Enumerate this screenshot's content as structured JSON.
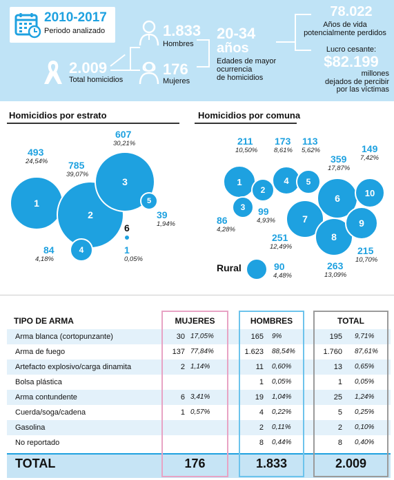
{
  "header": {
    "period_years": "2010-2017",
    "period_label": "Periodo analizado",
    "total_value": "2.009",
    "total_label": "Total homicidios",
    "men_value": "1.833",
    "men_label": "Hombres",
    "women_value": "176",
    "women_label": "Mujeres",
    "age_range": "20-34",
    "age_unit": "años",
    "age_desc_1": "Edades de mayor",
    "age_desc_2": "ocurrencia",
    "age_desc_3": "de homicidios",
    "years_lost_value": "78.022",
    "years_lost_label_1": "Años de vida",
    "years_lost_label_2": "potencialmente perdidos",
    "lucro_label": "Lucro cesante:",
    "lucro_value": "$82.199",
    "lucro_desc_1": "millones",
    "lucro_desc_2": "dejados de percibir",
    "lucro_desc_3": "por las víctimas",
    "icons": [
      "calendar-icon",
      "ribbon-icon",
      "man-icon",
      "woman-icon"
    ]
  },
  "estrato": {
    "title": "Homicidios por estrato",
    "items": [
      {
        "label": "1",
        "value": "493",
        "pct": "24,54%"
      },
      {
        "label": "2",
        "value": "785",
        "pct": "39,07%"
      },
      {
        "label": "3",
        "value": "607",
        "pct": "30,21%"
      },
      {
        "label": "4",
        "value": "84",
        "pct": "4,18%"
      },
      {
        "label": "5",
        "value": "39",
        "pct": "1,94%"
      },
      {
        "label": "6",
        "value": "1",
        "pct": "0,05%"
      }
    ]
  },
  "comuna": {
    "title": "Homicidios por comuna",
    "items": [
      {
        "label": "1",
        "value": "211",
        "pct": "10,50%"
      },
      {
        "label": "2",
        "value": "99",
        "pct": "4,93%"
      },
      {
        "label": "3",
        "value": "86",
        "pct": "4,28%"
      },
      {
        "label": "4",
        "value": "173",
        "pct": "8,61%"
      },
      {
        "label": "5",
        "value": "113",
        "pct": "5,62%"
      },
      {
        "label": "6",
        "value": "359",
        "pct": "17,87%"
      },
      {
        "label": "7",
        "value": "251",
        "pct": "12,49%"
      },
      {
        "label": "8",
        "value": "263",
        "pct": "13,09%"
      },
      {
        "label": "9",
        "value": "215",
        "pct": "10,70%"
      },
      {
        "label": "10",
        "value": "149",
        "pct": "7,42%"
      }
    ],
    "rural_label": "Rural",
    "rural_value": "90",
    "rural_pct": "4,48%"
  },
  "table": {
    "header_weapon": "TIPO DE ARMA",
    "header_women": "MUJERES",
    "header_men": "HOMBRES",
    "header_total": "TOTAL",
    "rows": [
      {
        "weapon": "Arma blanca (cortopunzante)",
        "w_n": "30",
        "w_p": "17,05%",
        "m_n": "165",
        "m_p": "9%",
        "t_n": "195",
        "t_p": "9,71%"
      },
      {
        "weapon": "Arma de fuego",
        "w_n": "137",
        "w_p": "77,84%",
        "m_n": "1.623",
        "m_p": "88,54%",
        "t_n": "1.760",
        "t_p": "87,61%"
      },
      {
        "weapon": "Artefacto explosivo/carga dinamita",
        "w_n": "2",
        "w_p": "1,14%",
        "m_n": "11",
        "m_p": "0,60%",
        "t_n": "13",
        "t_p": "0,65%"
      },
      {
        "weapon": "Bolsa plástica",
        "w_n": "",
        "w_p": "",
        "m_n": "1",
        "m_p": "0,05%",
        "t_n": "1",
        "t_p": "0,05%"
      },
      {
        "weapon": "Arma contundente",
        "w_n": "6",
        "w_p": "3,41%",
        "m_n": "19",
        "m_p": "1,04%",
        "t_n": "25",
        "t_p": "1,24%"
      },
      {
        "weapon": "Cuerda/soga/cadena",
        "w_n": "1",
        "w_p": "0,57%",
        "m_n": "4",
        "m_p": "0,22%",
        "t_n": "5",
        "t_p": "0,25%"
      },
      {
        "weapon": "Gasolina",
        "w_n": "",
        "w_p": "",
        "m_n": "2",
        "m_p": "0,11%",
        "t_n": "2",
        "t_p": "0,10%"
      },
      {
        "weapon": "No reportado",
        "w_n": "",
        "w_p": "",
        "m_n": "8",
        "m_p": "0,44%",
        "t_n": "8",
        "t_p": "0,40%"
      }
    ],
    "total_label": "TOTAL",
    "total_women": "176",
    "total_men": "1.833",
    "total_total": "2.009"
  },
  "colors": {
    "accent": "#1ea1e0",
    "top_bg": "#bfe3f6",
    "women_box": "#e8a3c4",
    "men_box": "#6cc3ec",
    "total_box": "#9a9a9a",
    "total_row_bg": "#c8e6f6"
  }
}
